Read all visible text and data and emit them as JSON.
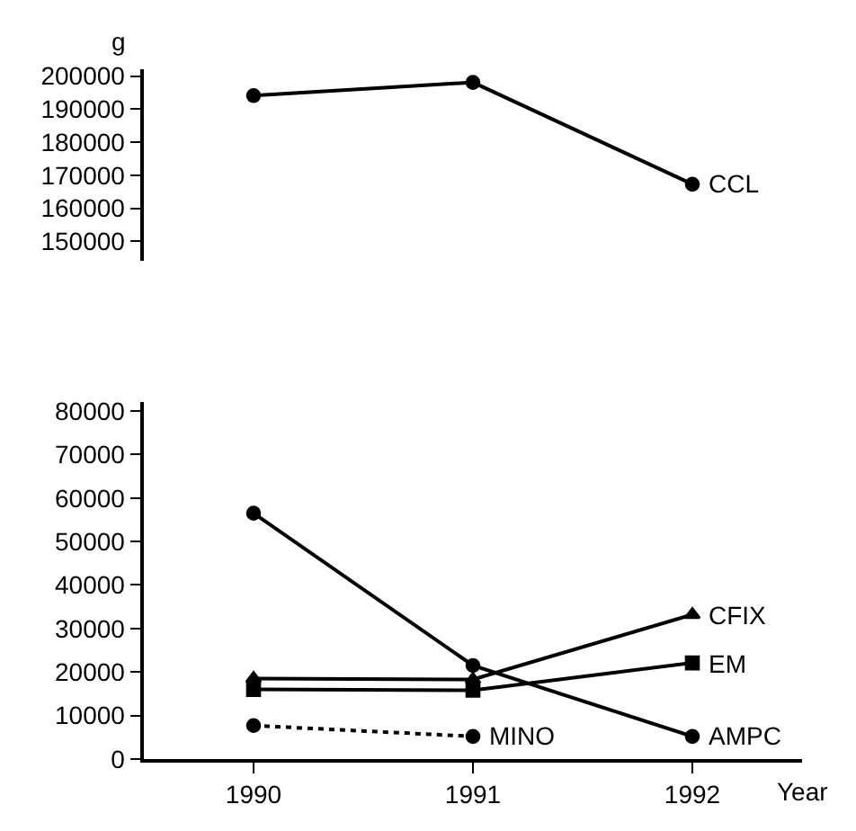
{
  "chart_data": [
    {
      "type": "line",
      "ylabel": "g",
      "x": [
        1990,
        1991,
        1992
      ],
      "ylim": [
        144000,
        202000
      ],
      "yticks": [
        150000,
        160000,
        170000,
        180000,
        190000,
        200000
      ],
      "tick_labels": "y",
      "legend": false,
      "series": [
        {
          "name": "CCL",
          "color": "#000000",
          "marker": "circle",
          "line_style": "solid",
          "values": [
            194100,
            198100,
            167300
          ]
        }
      ]
    },
    {
      "type": "line",
      "xlabel": "Year",
      "x": [
        1990,
        1991,
        1992
      ],
      "xlim": [
        1989.5,
        1992.5
      ],
      "xticks": [
        1990,
        1991,
        1992
      ],
      "ylim": [
        0,
        82000
      ],
      "yticks": [
        0,
        10000,
        20000,
        30000,
        40000,
        50000,
        60000,
        70000,
        80000
      ],
      "legend": false,
      "series": [
        {
          "name": "CFIX",
          "color": "#000000",
          "marker": "triangle",
          "line_style": "solid",
          "values": [
            18500,
            18300,
            33200
          ]
        },
        {
          "name": "EM",
          "color": "#000000",
          "marker": "square",
          "line_style": "solid",
          "values": [
            16000,
            15800,
            22100
          ]
        },
        {
          "name": "AMPC",
          "color": "#000000",
          "marker": "circle",
          "line_style": "solid",
          "values": [
            56500,
            21500,
            5200
          ]
        },
        {
          "name": "MINO",
          "color": "#000000",
          "marker": "circle",
          "line_style": "dotted",
          "values": [
            7700,
            5200,
            null
          ]
        }
      ]
    }
  ]
}
